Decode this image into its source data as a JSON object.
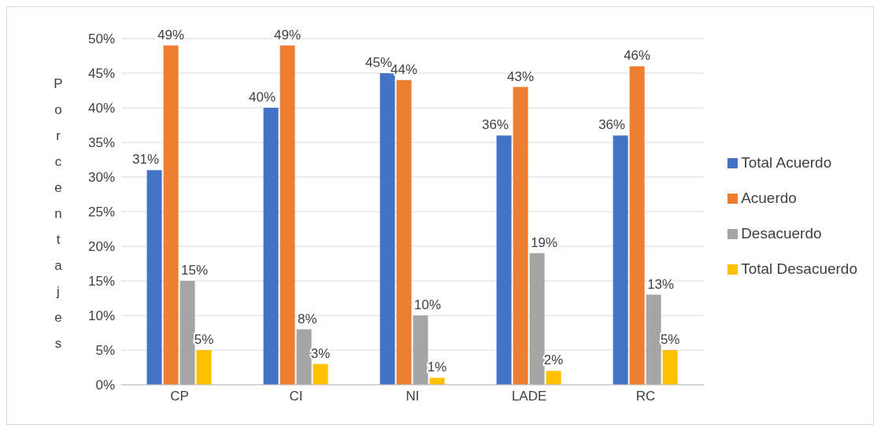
{
  "chart_data": {
    "type": "bar",
    "ylabel": "Porcentajes",
    "categories": [
      "CP",
      "CI",
      "NI",
      "LADE",
      "RC"
    ],
    "series": [
      {
        "name": "Total Acuerdo",
        "color": "#4472c4",
        "values": [
          31,
          40,
          45,
          36,
          36
        ],
        "value_labels": [
          "31%",
          "40%",
          "45%",
          "36%",
          "36%"
        ]
      },
      {
        "name": "Acuerdo",
        "color": "#ed7d31",
        "values": [
          49,
          49,
          44,
          43,
          46
        ],
        "value_labels": [
          "49%",
          "49%",
          "44%",
          "43%",
          "46%"
        ]
      },
      {
        "name": "Desacuerdo",
        "color": "#a5a5a5",
        "values": [
          15,
          8,
          10,
          19,
          13
        ],
        "value_labels": [
          "15%",
          "8%",
          "10%",
          "19%",
          "13%"
        ]
      },
      {
        "name": "Total Desacuerdo",
        "color": "#ffc000",
        "values": [
          5,
          3,
          1,
          2,
          5
        ],
        "value_labels": [
          "5%",
          "3%",
          "1%",
          "2%",
          "5%"
        ]
      }
    ],
    "ylim": [
      0,
      50
    ],
    "yticks": [
      {
        "value": 0,
        "label": "0%"
      },
      {
        "value": 5,
        "label": "5%"
      },
      {
        "value": 10,
        "label": "10%"
      },
      {
        "value": 15,
        "label": "15%"
      },
      {
        "value": 20,
        "label": "20%"
      },
      {
        "value": 25,
        "label": "25%"
      },
      {
        "value": 30,
        "label": "30%"
      },
      {
        "value": 35,
        "label": "35%"
      },
      {
        "value": 40,
        "label": "40%"
      },
      {
        "value": 45,
        "label": "45%"
      },
      {
        "value": 50,
        "label": "50%"
      }
    ],
    "grid": "y",
    "legend": "right"
  }
}
